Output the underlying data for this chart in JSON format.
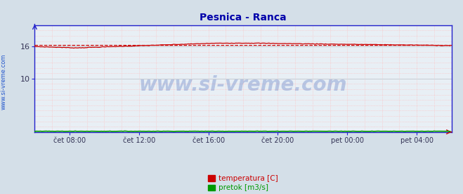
{
  "title": "Pesnica - Ranca",
  "title_color": "#0000aa",
  "bg_color": "#d4dfe8",
  "plot_bg_color": "#e8eff5",
  "border_color": "#2222cc",
  "watermark": "www.si-vreme.com",
  "watermark_color": "#4466bb",
  "watermark_alpha": 0.3,
  "ylabel_left": "www.si-vreme.com",
  "ylabel_left_color": "#2255cc",
  "xtick_labels": [
    "čet 08:00",
    "čet 12:00",
    "čet 16:00",
    "čet 20:00",
    "pet 00:00",
    "pet 04:00"
  ],
  "xtick_positions_frac": [
    0.083,
    0.25,
    0.417,
    0.583,
    0.75,
    0.917
  ],
  "ytick_labels": [
    "10",
    "16"
  ],
  "ytick_positions": [
    10,
    16
  ],
  "ylim": [
    0,
    20
  ],
  "n_points": 288,
  "temp_color": "#cc0000",
  "flow_color": "#009900",
  "ref_line_value": 16.25,
  "ref_line_color": "#cc0000",
  "grid_v_color": "#ffbbbb",
  "grid_h_color": "#ffbbbb",
  "grid_major_color": "#c0c8d0",
  "legend_temp_label": "temperatura [C]",
  "legend_flow_label": "pretok [m3/s]",
  "legend_temp_color": "#cc0000",
  "legend_flow_color": "#009900",
  "arrow_color": "#cc0000",
  "tick_color": "#2222cc"
}
